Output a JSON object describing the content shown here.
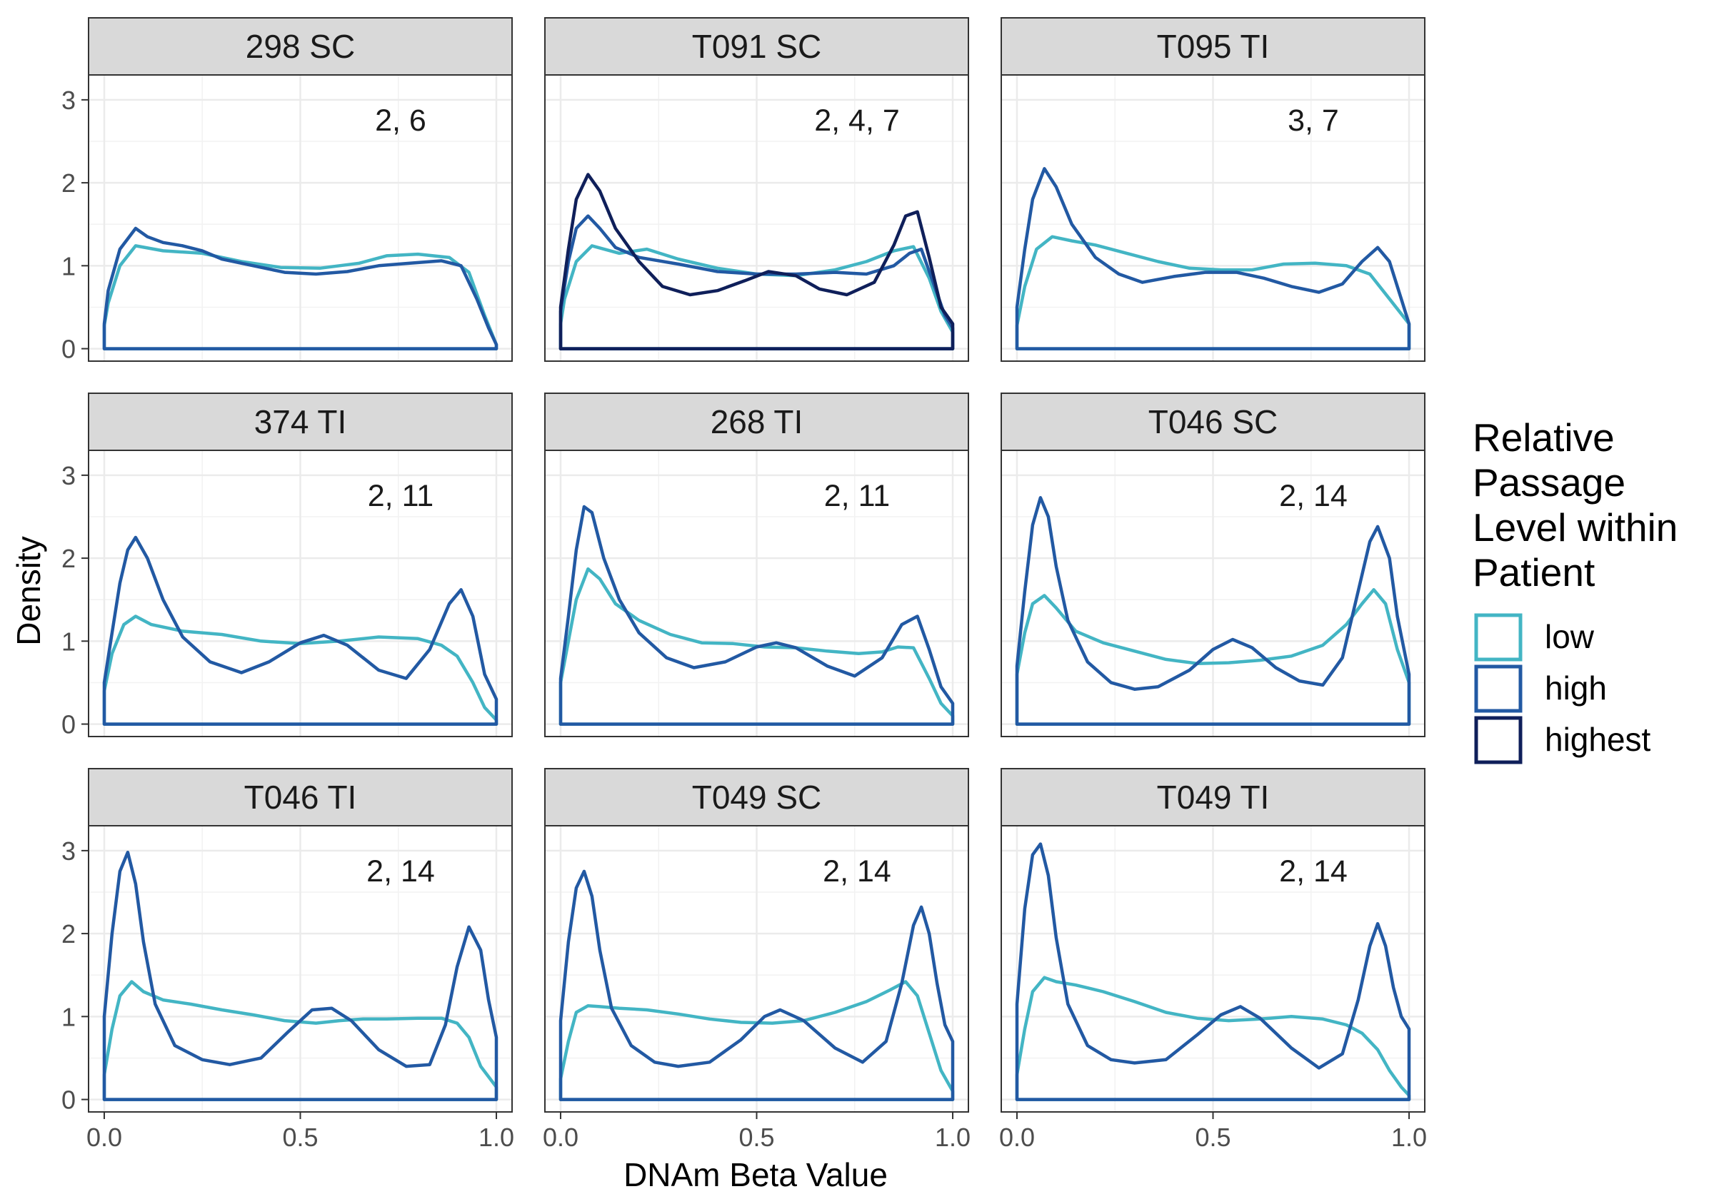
{
  "chart_data": {
    "type": "line",
    "facet_layout": "3x3",
    "xlabel": "DNAm Beta Value",
    "ylabel": "Density",
    "xlim": [
      -0.04,
      1.04
    ],
    "ylim": [
      -0.15,
      3.3
    ],
    "x_ticks": [
      0.0,
      0.5,
      1.0
    ],
    "x_tick_labels": [
      "0.0",
      "0.5",
      "1.0"
    ],
    "y_ticks": [
      0,
      1,
      2,
      3
    ],
    "y_tick_labels": [
      "0",
      "1",
      "2",
      "3"
    ],
    "grid": true,
    "legend": {
      "title": [
        "Relative",
        "Passage",
        "Level within",
        "Patient"
      ],
      "placement": "right",
      "entries": [
        {
          "label": "low",
          "color": "#43b5c4"
        },
        {
          "label": "high",
          "color": "#2259a3"
        },
        {
          "label": "highest",
          "color": "#0f1f5a"
        }
      ]
    },
    "panels": [
      {
        "title": "298 SC",
        "annotation": "2, 6",
        "series": [
          {
            "name": "low",
            "x": [
              0,
              0.01,
              0.04,
              0.08,
              0.15,
              0.25,
              0.35,
              0.45,
              0.55,
              0.65,
              0.72,
              0.8,
              0.88,
              0.93,
              0.97,
              1.0
            ],
            "y": [
              0.28,
              0.55,
              1.0,
              1.24,
              1.18,
              1.15,
              1.05,
              0.98,
              0.97,
              1.03,
              1.12,
              1.14,
              1.1,
              0.92,
              0.4,
              0.05
            ]
          },
          {
            "name": "high",
            "x": [
              0,
              0.01,
              0.04,
              0.08,
              0.11,
              0.15,
              0.2,
              0.25,
              0.3,
              0.38,
              0.46,
              0.54,
              0.62,
              0.7,
              0.78,
              0.86,
              0.91,
              0.95,
              0.98,
              1.0
            ],
            "y": [
              0.3,
              0.7,
              1.2,
              1.45,
              1.35,
              1.28,
              1.24,
              1.18,
              1.08,
              1.0,
              0.92,
              0.9,
              0.93,
              1.0,
              1.03,
              1.06,
              1.0,
              0.6,
              0.25,
              0.05
            ]
          }
        ]
      },
      {
        "title": "T091 SC",
        "annotation": "2, 4, 7",
        "series": [
          {
            "name": "low",
            "x": [
              0,
              0.01,
              0.04,
              0.08,
              0.15,
              0.22,
              0.3,
              0.4,
              0.5,
              0.6,
              0.7,
              0.78,
              0.85,
              0.9,
              0.94,
              0.97,
              1.0
            ],
            "y": [
              0.3,
              0.6,
              1.05,
              1.24,
              1.15,
              1.2,
              1.08,
              0.97,
              0.9,
              0.88,
              0.95,
              1.05,
              1.18,
              1.23,
              0.85,
              0.45,
              0.2
            ]
          },
          {
            "name": "high",
            "x": [
              0,
              0.02,
              0.04,
              0.07,
              0.1,
              0.14,
              0.2,
              0.3,
              0.4,
              0.5,
              0.6,
              0.7,
              0.78,
              0.85,
              0.89,
              0.92,
              0.95,
              0.98,
              1.0
            ],
            "y": [
              0.45,
              1.05,
              1.45,
              1.6,
              1.45,
              1.22,
              1.1,
              1.02,
              0.93,
              0.9,
              0.9,
              0.92,
              0.9,
              1.0,
              1.15,
              1.2,
              0.8,
              0.4,
              0.25
            ]
          },
          {
            "name": "highest",
            "x": [
              0,
              0.02,
              0.04,
              0.07,
              0.1,
              0.14,
              0.2,
              0.26,
              0.33,
              0.4,
              0.47,
              0.53,
              0.6,
              0.66,
              0.73,
              0.8,
              0.85,
              0.88,
              0.91,
              0.94,
              0.97,
              1.0
            ],
            "y": [
              0.5,
              1.2,
              1.8,
              2.1,
              1.9,
              1.45,
              1.05,
              0.75,
              0.65,
              0.7,
              0.82,
              0.93,
              0.88,
              0.72,
              0.65,
              0.8,
              1.25,
              1.6,
              1.65,
              1.1,
              0.5,
              0.3
            ]
          }
        ]
      },
      {
        "title": "T095 TI",
        "annotation": "3, 7",
        "series": [
          {
            "name": "low",
            "x": [
              0,
              0.02,
              0.05,
              0.09,
              0.14,
              0.2,
              0.28,
              0.36,
              0.44,
              0.52,
              0.6,
              0.68,
              0.76,
              0.84,
              0.9,
              0.95,
              1.0
            ],
            "y": [
              0.28,
              0.75,
              1.2,
              1.35,
              1.3,
              1.25,
              1.15,
              1.05,
              0.97,
              0.95,
              0.95,
              1.02,
              1.03,
              1.0,
              0.9,
              0.6,
              0.3
            ]
          },
          {
            "name": "high",
            "x": [
              0,
              0.02,
              0.04,
              0.07,
              0.1,
              0.14,
              0.2,
              0.26,
              0.32,
              0.4,
              0.48,
              0.56,
              0.63,
              0.7,
              0.77,
              0.83,
              0.88,
              0.92,
              0.95,
              0.98,
              1.0
            ],
            "y": [
              0.5,
              1.2,
              1.8,
              2.17,
              1.95,
              1.5,
              1.1,
              0.9,
              0.8,
              0.87,
              0.92,
              0.92,
              0.85,
              0.75,
              0.68,
              0.78,
              1.05,
              1.22,
              1.05,
              0.6,
              0.3
            ]
          }
        ]
      },
      {
        "title": "374 TI",
        "annotation": "2, 11",
        "series": [
          {
            "name": "low",
            "x": [
              0,
              0.02,
              0.05,
              0.08,
              0.12,
              0.2,
              0.3,
              0.4,
              0.5,
              0.6,
              0.7,
              0.8,
              0.86,
              0.9,
              0.94,
              0.97,
              1.0
            ],
            "y": [
              0.4,
              0.85,
              1.2,
              1.3,
              1.2,
              1.12,
              1.08,
              1.0,
              0.97,
              1.0,
              1.05,
              1.03,
              0.95,
              0.82,
              0.5,
              0.2,
              0.05
            ]
          },
          {
            "name": "high",
            "x": [
              0,
              0.02,
              0.04,
              0.06,
              0.08,
              0.11,
              0.15,
              0.2,
              0.27,
              0.35,
              0.42,
              0.5,
              0.56,
              0.62,
              0.7,
              0.77,
              0.83,
              0.88,
              0.91,
              0.94,
              0.97,
              1.0
            ],
            "y": [
              0.5,
              1.1,
              1.7,
              2.1,
              2.25,
              2.0,
              1.5,
              1.05,
              0.75,
              0.62,
              0.75,
              0.98,
              1.07,
              0.95,
              0.65,
              0.55,
              0.9,
              1.45,
              1.62,
              1.3,
              0.6,
              0.3
            ]
          }
        ]
      },
      {
        "title": "268 TI",
        "annotation": "2, 11",
        "series": [
          {
            "name": "low",
            "x": [
              0,
              0.02,
              0.04,
              0.07,
              0.1,
              0.14,
              0.2,
              0.28,
              0.36,
              0.44,
              0.52,
              0.6,
              0.68,
              0.76,
              0.82,
              0.86,
              0.9,
              0.94,
              0.97,
              1.0
            ],
            "y": [
              0.5,
              1.0,
              1.5,
              1.87,
              1.75,
              1.45,
              1.25,
              1.08,
              0.98,
              0.97,
              0.93,
              0.92,
              0.88,
              0.85,
              0.87,
              0.93,
              0.92,
              0.55,
              0.25,
              0.1
            ]
          },
          {
            "name": "high",
            "x": [
              0,
              0.02,
              0.04,
              0.06,
              0.08,
              0.11,
              0.15,
              0.2,
              0.27,
              0.34,
              0.42,
              0.5,
              0.55,
              0.6,
              0.68,
              0.75,
              0.82,
              0.87,
              0.91,
              0.94,
              0.97,
              1.0
            ],
            "y": [
              0.55,
              1.3,
              2.1,
              2.62,
              2.55,
              2.0,
              1.5,
              1.1,
              0.8,
              0.68,
              0.75,
              0.93,
              0.98,
              0.92,
              0.7,
              0.58,
              0.8,
              1.2,
              1.3,
              0.9,
              0.45,
              0.25
            ]
          }
        ]
      },
      {
        "title": "T046 SC",
        "annotation": "2, 14",
        "series": [
          {
            "name": "low",
            "x": [
              0,
              0.02,
              0.04,
              0.07,
              0.1,
              0.15,
              0.22,
              0.3,
              0.38,
              0.46,
              0.54,
              0.62,
              0.7,
              0.78,
              0.84,
              0.88,
              0.91,
              0.94,
              0.97,
              1.0
            ],
            "y": [
              0.6,
              1.1,
              1.45,
              1.55,
              1.4,
              1.12,
              0.98,
              0.88,
              0.78,
              0.73,
              0.74,
              0.77,
              0.82,
              0.95,
              1.2,
              1.45,
              1.62,
              1.45,
              0.9,
              0.5
            ]
          },
          {
            "name": "high",
            "x": [
              0,
              0.02,
              0.04,
              0.06,
              0.08,
              0.1,
              0.13,
              0.18,
              0.24,
              0.3,
              0.36,
              0.44,
              0.5,
              0.55,
              0.6,
              0.66,
              0.72,
              0.78,
              0.83,
              0.87,
              0.9,
              0.92,
              0.95,
              0.97,
              1.0
            ],
            "y": [
              0.7,
              1.6,
              2.4,
              2.73,
              2.5,
              1.9,
              1.25,
              0.75,
              0.5,
              0.42,
              0.45,
              0.65,
              0.9,
              1.02,
              0.92,
              0.68,
              0.52,
              0.47,
              0.8,
              1.6,
              2.2,
              2.38,
              2.0,
              1.3,
              0.6
            ]
          }
        ]
      },
      {
        "title": "T046 TI",
        "annotation": "2, 14",
        "series": [
          {
            "name": "low",
            "x": [
              0,
              0.02,
              0.04,
              0.07,
              0.1,
              0.15,
              0.22,
              0.3,
              0.38,
              0.46,
              0.54,
              0.6,
              0.66,
              0.72,
              0.8,
              0.86,
              0.9,
              0.93,
              0.96,
              1.0
            ],
            "y": [
              0.3,
              0.85,
              1.25,
              1.42,
              1.3,
              1.2,
              1.15,
              1.08,
              1.02,
              0.95,
              0.92,
              0.95,
              0.97,
              0.97,
              0.98,
              0.98,
              0.92,
              0.75,
              0.4,
              0.15
            ]
          },
          {
            "name": "high",
            "x": [
              0,
              0.02,
              0.04,
              0.06,
              0.08,
              0.1,
              0.13,
              0.18,
              0.25,
              0.32,
              0.4,
              0.47,
              0.53,
              0.58,
              0.63,
              0.7,
              0.77,
              0.83,
              0.87,
              0.9,
              0.93,
              0.96,
              0.98,
              1.0
            ],
            "y": [
              1.0,
              2.0,
              2.75,
              2.98,
              2.6,
              1.9,
              1.15,
              0.65,
              0.48,
              0.42,
              0.5,
              0.82,
              1.08,
              1.1,
              0.95,
              0.6,
              0.4,
              0.42,
              0.9,
              1.6,
              2.08,
              1.8,
              1.2,
              0.75
            ]
          }
        ]
      },
      {
        "title": "T049 SC",
        "annotation": "2, 14",
        "series": [
          {
            "name": "low",
            "x": [
              0,
              0.02,
              0.04,
              0.07,
              0.1,
              0.15,
              0.22,
              0.3,
              0.38,
              0.46,
              0.54,
              0.62,
              0.7,
              0.78,
              0.84,
              0.88,
              0.91,
              0.94,
              0.97,
              1.0
            ],
            "y": [
              0.25,
              0.7,
              1.05,
              1.13,
              1.12,
              1.1,
              1.08,
              1.03,
              0.97,
              0.93,
              0.92,
              0.95,
              1.05,
              1.18,
              1.32,
              1.42,
              1.25,
              0.8,
              0.35,
              0.1
            ]
          },
          {
            "name": "high",
            "x": [
              0,
              0.02,
              0.04,
              0.06,
              0.08,
              0.1,
              0.13,
              0.18,
              0.24,
              0.3,
              0.38,
              0.46,
              0.52,
              0.56,
              0.62,
              0.7,
              0.77,
              0.83,
              0.87,
              0.9,
              0.92,
              0.94,
              0.96,
              0.98,
              1.0
            ],
            "y": [
              0.95,
              1.9,
              2.55,
              2.75,
              2.45,
              1.8,
              1.1,
              0.65,
              0.45,
              0.4,
              0.45,
              0.72,
              1.0,
              1.08,
              0.95,
              0.62,
              0.45,
              0.7,
              1.4,
              2.1,
              2.32,
              2.0,
              1.4,
              0.9,
              0.7
            ]
          }
        ]
      },
      {
        "title": "T049 TI",
        "annotation": "2, 14",
        "series": [
          {
            "name": "low",
            "x": [
              0,
              0.02,
              0.04,
              0.07,
              0.1,
              0.15,
              0.22,
              0.3,
              0.38,
              0.46,
              0.54,
              0.62,
              0.7,
              0.78,
              0.84,
              0.88,
              0.92,
              0.95,
              0.98,
              1.0
            ],
            "y": [
              0.3,
              0.85,
              1.3,
              1.47,
              1.42,
              1.38,
              1.3,
              1.18,
              1.05,
              0.98,
              0.95,
              0.97,
              1.0,
              0.97,
              0.9,
              0.8,
              0.6,
              0.35,
              0.15,
              0.05
            ]
          },
          {
            "name": "high",
            "x": [
              0,
              0.02,
              0.04,
              0.06,
              0.08,
              0.1,
              0.13,
              0.18,
              0.24,
              0.3,
              0.38,
              0.46,
              0.52,
              0.57,
              0.62,
              0.7,
              0.77,
              0.83,
              0.87,
              0.9,
              0.92,
              0.94,
              0.96,
              0.98,
              1.0
            ],
            "y": [
              1.15,
              2.3,
              2.95,
              3.08,
              2.7,
              1.95,
              1.15,
              0.65,
              0.48,
              0.44,
              0.48,
              0.78,
              1.02,
              1.12,
              0.98,
              0.62,
              0.38,
              0.55,
              1.2,
              1.85,
              2.12,
              1.85,
              1.35,
              1.0,
              0.85
            ]
          }
        ]
      }
    ]
  }
}
